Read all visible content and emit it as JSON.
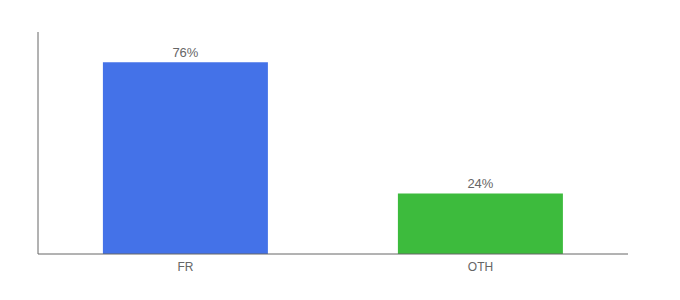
{
  "chart_data": {
    "type": "bar",
    "categories": [
      "FR",
      "OTH"
    ],
    "values": [
      76,
      24
    ],
    "value_labels": [
      "76%",
      "24%"
    ],
    "colors": [
      "#4472e8",
      "#3dbb3d"
    ],
    "ylim": [
      0,
      88
    ],
    "data_labels": true,
    "tick_labels": "x"
  }
}
